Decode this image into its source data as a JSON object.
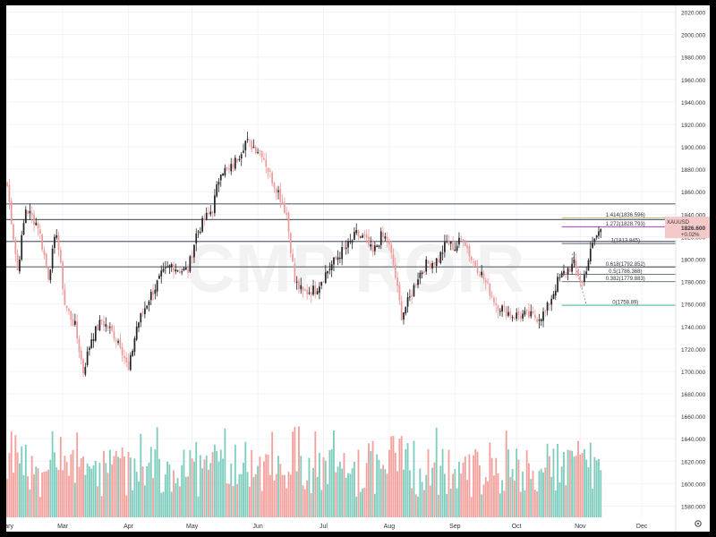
{
  "chart_data": {
    "type": "candlestick",
    "colors": {
      "up": "#262626",
      "down": "#ef9a9a",
      "vol_up": "#7fcdbe",
      "vol_down": "#f4a09c",
      "hline": "#5d6475",
      "tag_bg": "#5d6475",
      "price_tag_bg": "#f6c9c9",
      "fib_1272": "#b23ab2",
      "fib_1414": "#c8b070",
      "fib_0": "#26a69a",
      "grid": "#f0f3f8"
    },
    "watermark": "CMP ROIR",
    "ylim": [
      1570,
      2026
    ],
    "y_ticks": [
      "2020.000",
      "2000.000",
      "1980.000",
      "1960.000",
      "1940.000",
      "1920.000",
      "1900.000",
      "1880.000",
      "1860.000",
      "1840.000",
      "1820.000",
      "1800.000",
      "1780.000",
      "1760.000",
      "1740.000",
      "1720.000",
      "1700.000",
      "1680.000",
      "1660.000",
      "1640.000",
      "1620.000",
      "1600.000",
      "1580.000"
    ],
    "x_ticks": [
      {
        "label": "uary",
        "i": 0
      },
      {
        "label": "Mar",
        "i": 27
      },
      {
        "label": "Apr",
        "i": 59
      },
      {
        "label": "May",
        "i": 90
      },
      {
        "label": "Jun",
        "i": 122
      },
      {
        "label": "Jul",
        "i": 154
      },
      {
        "label": "Aug",
        "i": 186
      },
      {
        "label": "Sep",
        "i": 218
      },
      {
        "label": "Oct",
        "i": 248
      },
      {
        "label": "Nov",
        "i": 279
      },
      {
        "label": "Dec",
        "i": 309
      }
    ],
    "n_slots": 326,
    "levels": [
      {
        "value": 1849.19,
        "label": "1849.190"
      },
      {
        "value": 1835.16,
        "label": "1835.160"
      },
      {
        "value": 1815.71,
        "label": "1815.710"
      },
      {
        "value": 1793.05,
        "label": "1793.050"
      }
    ],
    "fib": [
      {
        "value": 1836.596,
        "label": "1.414(1836.596)",
        "color_key": "fib_1414"
      },
      {
        "value": 1828.793,
        "label": "1.272(1828.793)",
        "color_key": "fib_1272"
      },
      {
        "value": 1813.845,
        "label": "1(1813.845)",
        "color_key": "hline"
      },
      {
        "value": 1792.852,
        "label": "0.618(1792.852)",
        "color_key": "hline"
      },
      {
        "value": 1786.368,
        "label": "0.5(1786.368)",
        "color_key": "hline"
      },
      {
        "value": 1779.883,
        "label": "0.382(1779.883)",
        "color_key": "hline"
      },
      {
        "value": 1758.89,
        "label": "0(1758.89)",
        "color_key": "fib_0"
      }
    ],
    "price_tag": {
      "symbol": "XAUUSD",
      "price": "1826.600",
      "change": "+0.02%",
      "value": 1826.6
    },
    "anchors": [
      [
        0,
        1865
      ],
      [
        5,
        1790
      ],
      [
        9,
        1845
      ],
      [
        15,
        1830
      ],
      [
        20,
        1785
      ],
      [
        24,
        1825
      ],
      [
        28,
        1760
      ],
      [
        33,
        1740
      ],
      [
        37,
        1700
      ],
      [
        41,
        1730
      ],
      [
        46,
        1745
      ],
      [
        50,
        1737
      ],
      [
        55,
        1725
      ],
      [
        59,
        1700
      ],
      [
        63,
        1740
      ],
      [
        69,
        1765
      ],
      [
        75,
        1785
      ],
      [
        80,
        1795
      ],
      [
        84,
        1790
      ],
      [
        88,
        1790
      ],
      [
        92,
        1822
      ],
      [
        96,
        1835
      ],
      [
        100,
        1845
      ],
      [
        104,
        1880
      ],
      [
        108,
        1878
      ],
      [
        112,
        1890
      ],
      [
        116,
        1905
      ],
      [
        120,
        1900
      ],
      [
        124,
        1895
      ],
      [
        128,
        1875
      ],
      [
        132,
        1860
      ],
      [
        136,
        1840
      ],
      [
        140,
        1780
      ],
      [
        144,
        1770
      ],
      [
        150,
        1773
      ],
      [
        156,
        1790
      ],
      [
        162,
        1805
      ],
      [
        166,
        1812
      ],
      [
        170,
        1822
      ],
      [
        174,
        1818
      ],
      [
        178,
        1805
      ],
      [
        182,
        1820
      ],
      [
        185,
        1818
      ],
      [
        188,
        1795
      ],
      [
        192,
        1750
      ],
      [
        196,
        1765
      ],
      [
        200,
        1785
      ],
      [
        204,
        1795
      ],
      [
        210,
        1800
      ],
      [
        214,
        1815
      ],
      [
        218,
        1810
      ],
      [
        222,
        1820
      ],
      [
        226,
        1800
      ],
      [
        230,
        1790
      ],
      [
        234,
        1775
      ],
      [
        238,
        1760
      ],
      [
        242,
        1755
      ],
      [
        246,
        1750
      ],
      [
        252,
        1750
      ],
      [
        258,
        1748
      ],
      [
        262,
        1752
      ],
      [
        268,
        1780
      ],
      [
        272,
        1790
      ],
      [
        276,
        1795
      ],
      [
        280,
        1778
      ],
      [
        283,
        1800
      ],
      [
        286,
        1818
      ],
      [
        289,
        1826.6
      ]
    ],
    "volume_ylim": [
      0,
      500000
    ],
    "volume_note": "volume bars shown as histogram beneath price"
  }
}
